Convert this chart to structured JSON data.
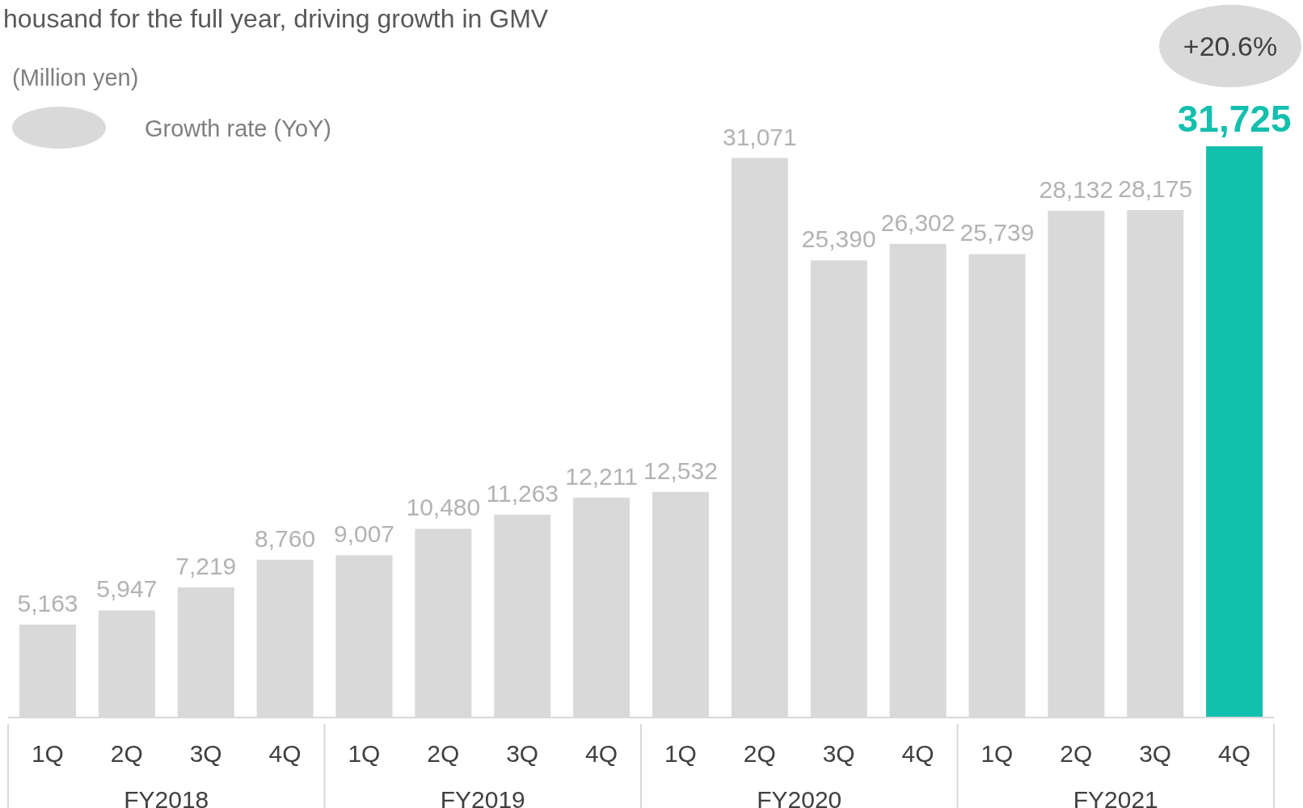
{
  "chart_data": {
    "type": "bar",
    "title": "housand for the full year, driving growth in GMV",
    "ylabel": "(Million yen)",
    "categories": [
      "1Q",
      "2Q",
      "3Q",
      "4Q",
      "1Q",
      "2Q",
      "3Q",
      "4Q",
      "1Q",
      "2Q",
      "3Q",
      "4Q",
      "1Q",
      "2Q",
      "3Q",
      "4Q"
    ],
    "values": [
      5163,
      5947,
      7219,
      8760,
      9007,
      10480,
      11263,
      12211,
      12532,
      31071,
      25390,
      26302,
      25739,
      28132,
      28175,
      31725
    ],
    "colors": [
      "#d9d9d9",
      "#d9d9d9",
      "#d9d9d9",
      "#d9d9d9",
      "#d9d9d9",
      "#d9d9d9",
      "#d9d9d9",
      "#d9d9d9",
      "#d9d9d9",
      "#d9d9d9",
      "#d9d9d9",
      "#d9d9d9",
      "#d9d9d9",
      "#d9d9d9",
      "#d9d9d9",
      "#13bfad"
    ],
    "value_labels": [
      "5,163",
      "5,947",
      "7,219",
      "8,760",
      "9,007",
      "10,480",
      "11,263",
      "12,211",
      "12,532",
      "31,071",
      "25,390",
      "26,302",
      "25,739",
      "28,132",
      "28,175",
      "31,725"
    ],
    "annotations": [
      "FY2018",
      "FY2019",
      "FY2020",
      "FY2021",
      "Growth rate (YoY)",
      "+20.6%"
    ]
  }
}
